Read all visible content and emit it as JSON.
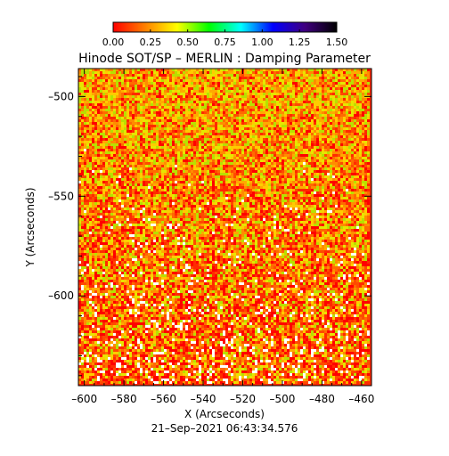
{
  "chart_data": {
    "type": "heatmap",
    "title": "Hinode SOT/SP – MERLIN : Damping Parameter",
    "xlabel": "X (Arcseconds)",
    "ylabel": "Y (Arcseconds)",
    "timestamp": "21–Sep–2021 06:43:34.576",
    "xlim": [
      -603,
      -455
    ],
    "ylim": [
      -645,
      -486
    ],
    "x_ticks": [
      -600,
      -580,
      -560,
      -540,
      -520,
      -500,
      -480,
      -460
    ],
    "x_tick_labels": [
      "–600",
      "–580",
      "–560",
      "–540",
      "–520",
      "–500",
      "–480",
      "–460"
    ],
    "y_ticks": [
      -600,
      -550,
      -500
    ],
    "y_tick_labels": [
      "–600",
      "–550",
      "–500"
    ],
    "colorbar": {
      "range": [
        0.0,
        1.5
      ],
      "ticks": [
        0.0,
        0.25,
        0.5,
        0.75,
        1.0,
        1.25,
        1.5
      ],
      "tick_labels": [
        "0.00",
        "0.25",
        "0.50",
        "0.75",
        "1.00",
        "1.25",
        "1.50"
      ],
      "colors": [
        "#ff0000",
        "#ff8000",
        "#ffff00",
        "#00ff00",
        "#00ffff",
        "#0000ff",
        "#400080",
        "#000000"
      ]
    },
    "field_description": {
      "dominant_value": 0.15,
      "bright_patch_value": 0.35,
      "white_speckle_fraction_bottom": 0.12
    }
  }
}
